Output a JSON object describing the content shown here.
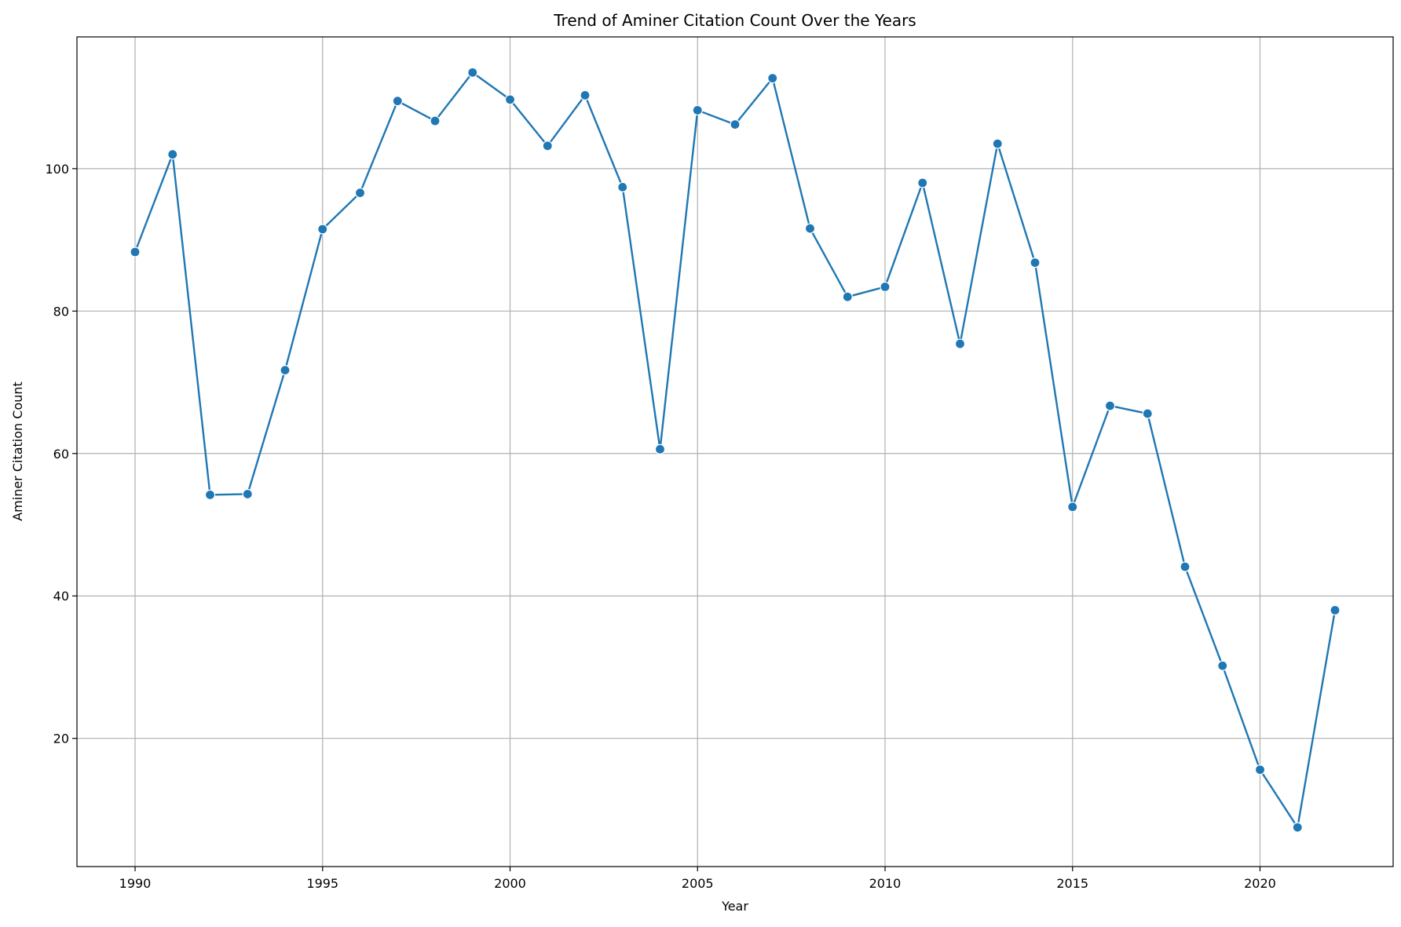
{
  "chart_data": {
    "type": "line",
    "title": "Trend of Aminer Citation Count Over the Years",
    "xlabel": "Year",
    "ylabel": "Aminer Citation Count",
    "xlim": [
      1988.45,
      2023.55
    ],
    "ylim": [
      2.0,
      118.5
    ],
    "xticks": [
      1990,
      1995,
      2000,
      2005,
      2010,
      2015,
      2020
    ],
    "yticks": [
      20,
      40,
      60,
      80,
      100
    ],
    "grid": true,
    "legend": "none",
    "colors": {
      "line": "#1f77b4",
      "marker": "#1f77b4",
      "marker_edge": "#ffffff",
      "grid": "#b0b0b0",
      "axes": "#000000"
    },
    "marker": "circle",
    "series": [
      {
        "x": [
          1990,
          1991,
          1992,
          1993,
          1994,
          1995,
          1996,
          1997,
          1998,
          1999,
          2000,
          2001,
          2002,
          2003,
          2004,
          2005,
          2006,
          2007,
          2008,
          2009,
          2010,
          2011,
          2012,
          2013,
          2014,
          2015,
          2016,
          2017,
          2018,
          2019,
          2020,
          2021,
          2022
        ],
        "values": [
          88.3,
          102.0,
          54.2,
          54.3,
          71.7,
          91.5,
          96.6,
          109.5,
          106.7,
          113.5,
          109.7,
          103.2,
          110.3,
          97.4,
          60.6,
          108.2,
          106.2,
          112.7,
          91.6,
          82.0,
          83.4,
          98.0,
          75.4,
          103.5,
          86.8,
          52.5,
          66.7,
          65.6,
          44.1,
          30.2,
          15.6,
          7.5,
          38.0
        ]
      }
    ]
  }
}
